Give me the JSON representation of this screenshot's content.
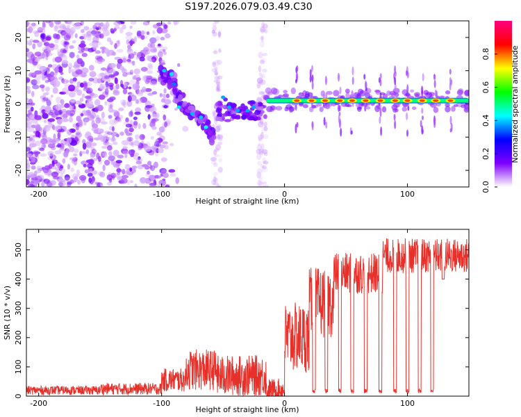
{
  "title": "S197.2026.079.03.49.C30",
  "chart_data": [
    {
      "type": "heatmap",
      "name": "spectrogram",
      "xlabel": "Height of straight line (km)",
      "ylabel": "Frequency (Hz)",
      "xlim": [
        -210,
        150
      ],
      "ylim": [
        -25,
        25
      ],
      "xticks": [
        -200,
        -100,
        0,
        100
      ],
      "yticks": [
        -20,
        -10,
        0,
        10,
        20
      ],
      "colorbar": {
        "label": "Normalized spectral amplitude",
        "range": [
          0,
          1
        ],
        "ticks": [
          "0.0",
          "0.2",
          "0.4",
          "0.6",
          "0.8"
        ],
        "colors": [
          "#ffffff",
          "#8000ff",
          "#0000ff",
          "#00ffff",
          "#00ff00",
          "#ffff00",
          "#ff0000",
          "#ff0080"
        ]
      },
      "features": {
        "noise_region_x": [
          -210,
          -95
        ],
        "descending_track": [
          [
            -100,
            9
          ],
          [
            -92,
            7
          ],
          [
            -85,
            1
          ],
          [
            -78,
            -2
          ],
          [
            -70,
            -4
          ],
          [
            -62,
            -7
          ],
          [
            -58,
            -11
          ]
        ],
        "flat_track_freq": 1,
        "flat_track_x": [
          -15,
          150
        ],
        "bright_spots_x": [
          10,
          22,
          33,
          45,
          55,
          66,
          78,
          90,
          100,
          112,
          123,
          135
        ]
      }
    },
    {
      "type": "line",
      "name": "snr",
      "xlabel": "Height of straight line (km)",
      "ylabel": "SNR (10 * v/v)",
      "xlim": [
        -210,
        150
      ],
      "ylim": [
        0,
        570
      ],
      "xticks": [
        -200,
        -100,
        0,
        100
      ],
      "yticks": [
        0,
        100,
        200,
        300,
        400,
        500
      ],
      "series_color": "#e8302a",
      "segments": [
        {
          "x": [
            -210,
            -150
          ],
          "level": 20,
          "noise": 15
        },
        {
          "x": [
            -150,
            -100
          ],
          "level": 25,
          "noise": 20
        },
        {
          "x": [
            -100,
            -80
          ],
          "level": 55,
          "noise": 40
        },
        {
          "x": [
            -80,
            -55
          ],
          "level": 90,
          "noise": 70
        },
        {
          "x": [
            -55,
            -15
          ],
          "level": 70,
          "noise": 70
        },
        {
          "x": [
            -15,
            0
          ],
          "level": 20,
          "noise": 40
        },
        {
          "x": [
            0,
            20
          ],
          "level": 200,
          "noise": 120
        },
        {
          "x": [
            20,
            40
          ],
          "level": 320,
          "noise": 120
        },
        {
          "x": [
            40,
            80
          ],
          "level": 420,
          "noise": 70
        },
        {
          "x": [
            80,
            150
          ],
          "level": 480,
          "noise": 60
        }
      ],
      "dropouts_x": [
        24,
        34,
        45,
        55,
        66,
        78,
        90,
        100,
        110,
        120
      ]
    }
  ]
}
